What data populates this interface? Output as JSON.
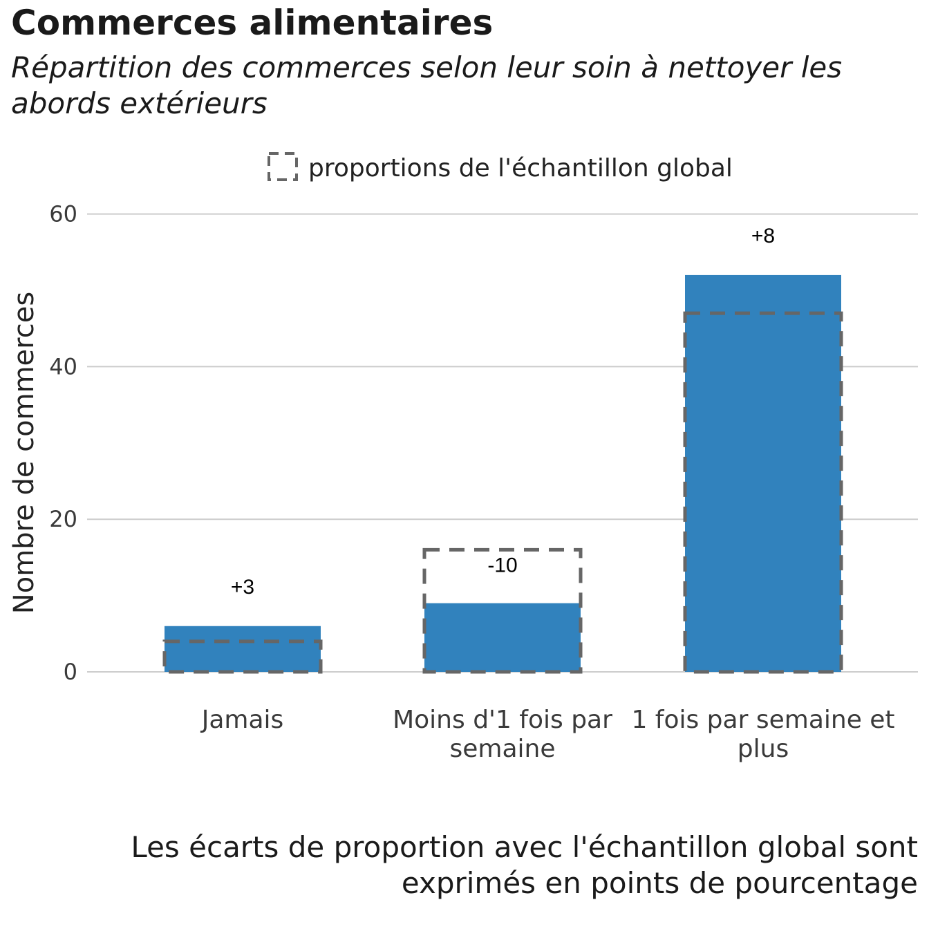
{
  "title": "Commerces alimentaires",
  "subtitle": "Répartition des commerces selon leur soin à nettoyer les abords extérieurs",
  "caption": "Les écarts de proportion avec l'échantillon global sont exprimés en points de pourcentage",
  "legend": {
    "label": "proportions de l'échantillon global"
  },
  "colors": {
    "bar": "#3182bd",
    "reference": "#666666",
    "grid": "#cccccc"
  },
  "chart_data": {
    "type": "bar",
    "ylabel": "Nombre de commerces",
    "ylim": [
      0,
      62
    ],
    "yticks": [
      0,
      20,
      40,
      60
    ],
    "grid": true,
    "legend_position": "top",
    "categories": [
      {
        "lines": [
          "Jamais"
        ]
      },
      {
        "lines": [
          "Moins d'1 fois par",
          "semaine"
        ]
      },
      {
        "lines": [
          "1 fois par semaine et",
          "plus"
        ]
      }
    ],
    "series": [
      {
        "values": [
          6,
          9,
          52
        ]
      },
      {
        "name": "proportions de l'échantillon global",
        "values": [
          4,
          16,
          47
        ]
      }
    ],
    "data_labels": [
      "+3",
      "-10",
      "+8"
    ]
  }
}
